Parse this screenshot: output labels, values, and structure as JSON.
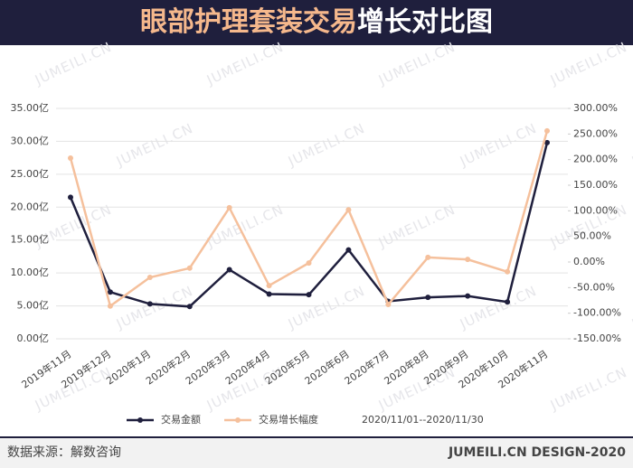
{
  "title": "眼部护理套装交易",
  "title_highlight": "增长对比图",
  "source": "数据来源：解数咨询",
  "credit": "JUMEILI.CN DESIGN-2020",
  "watermark": "JUMEILI.CN",
  "chart_data": {
    "type": "line",
    "annotation": "2020/11/01--2020/11/30",
    "categories": [
      "2019年11月",
      "2019年12月",
      "2020年1月",
      "2020年2月",
      "2020年3月",
      "2020年4月",
      "2020年5月",
      "2020年6月",
      "2020年7月",
      "2020年8月",
      "2020年9月",
      "2020年10月",
      "2020年11月"
    ],
    "series": [
      {
        "name": "交易金额",
        "color": "#1f1f3d",
        "values": [
          21.5,
          7.1,
          5.3,
          4.9,
          10.5,
          6.8,
          6.7,
          13.5,
          5.7,
          6.3,
          6.5,
          5.6,
          29.8
        ]
      },
      {
        "name": "交易增长幅度",
        "color": "#f5c09c",
        "axis": "y2",
        "values": [
          203,
          -86,
          -30,
          -12,
          106,
          -46,
          -2,
          102,
          -83,
          9,
          5,
          -19,
          256
        ]
      }
    ],
    "ylim": [
      0,
      35
    ],
    "yticks": [
      {
        "value": 0,
        "label": "0.00亿"
      },
      {
        "value": 5,
        "label": "5.00亿"
      },
      {
        "value": 10,
        "label": "10.00亿"
      },
      {
        "value": 15,
        "label": "15.00亿"
      },
      {
        "value": 20,
        "label": "20.00亿"
      },
      {
        "value": 25,
        "label": "25.00亿"
      },
      {
        "value": 30,
        "label": "30.00亿"
      },
      {
        "value": 35,
        "label": "35.00亿"
      }
    ],
    "y2lim": [
      -150,
      300
    ],
    "y2ticks": [
      {
        "value": -150,
        "label": "-150.00%"
      },
      {
        "value": -100,
        "label": "-100.00%"
      },
      {
        "value": -50,
        "label": "-50.00%"
      },
      {
        "value": 0,
        "label": "0.00%"
      },
      {
        "value": 50,
        "label": "50.00%"
      },
      {
        "value": 100,
        "label": "100.00%"
      },
      {
        "value": 150,
        "label": "150.00%"
      },
      {
        "value": 200,
        "label": "200.00%"
      },
      {
        "value": 250,
        "label": "250.00%"
      },
      {
        "value": 300,
        "label": "300.00%"
      }
    ],
    "grid": true,
    "legend": "bottom"
  }
}
